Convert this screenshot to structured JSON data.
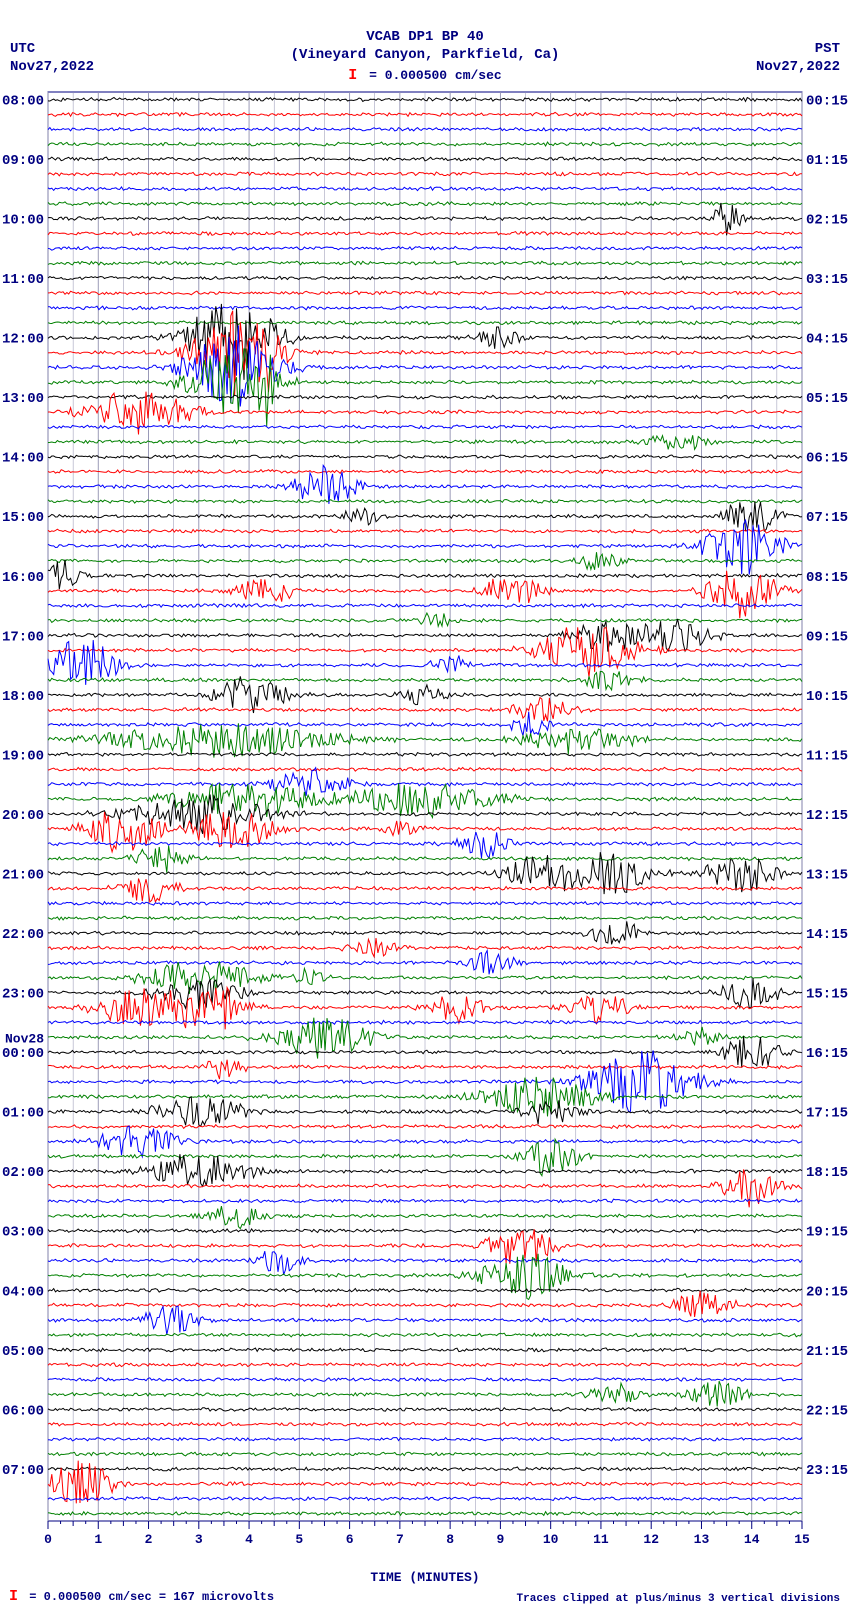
{
  "header": {
    "station": "VCAB DP1 BP 40",
    "location": "(Vineyard Canyon, Parkfield, Ca)",
    "scale_value": "= 0.000500 cm/sec"
  },
  "corners": {
    "tl_tz": "UTC",
    "tl_date": "Nov27,2022",
    "tr_tz": "PST",
    "tr_date": "Nov27,2022"
  },
  "footer": {
    "left": "= 0.000500 cm/sec =    167 microvolts",
    "right": "Traces clipped at plus/minus 3 vertical divisions"
  },
  "x_axis": {
    "label": "TIME (MINUTES)",
    "ticks": [
      0,
      1,
      2,
      3,
      4,
      5,
      6,
      7,
      8,
      9,
      10,
      11,
      12,
      13,
      14,
      15
    ]
  },
  "plot": {
    "grid_color": "#9090b0",
    "axis_color": "#000080",
    "trace_colors": [
      "#000000",
      "#ff0000",
      "#0000ff",
      "#008000"
    ],
    "line_width": 1.0,
    "x_min": 0,
    "x_max": 15,
    "trace_count": 96,
    "date_break": {
      "after_hour": 23,
      "label": "Nov28"
    },
    "left_labels": [
      {
        "idx": 0,
        "t": "08:00"
      },
      {
        "idx": 4,
        "t": "09:00"
      },
      {
        "idx": 8,
        "t": "10:00"
      },
      {
        "idx": 12,
        "t": "11:00"
      },
      {
        "idx": 16,
        "t": "12:00"
      },
      {
        "idx": 20,
        "t": "13:00"
      },
      {
        "idx": 24,
        "t": "14:00"
      },
      {
        "idx": 28,
        "t": "15:00"
      },
      {
        "idx": 32,
        "t": "16:00"
      },
      {
        "idx": 36,
        "t": "17:00"
      },
      {
        "idx": 40,
        "t": "18:00"
      },
      {
        "idx": 44,
        "t": "19:00"
      },
      {
        "idx": 48,
        "t": "20:00"
      },
      {
        "idx": 52,
        "t": "21:00"
      },
      {
        "idx": 56,
        "t": "22:00"
      },
      {
        "idx": 60,
        "t": "23:00"
      },
      {
        "idx": 64,
        "t": "00:00"
      },
      {
        "idx": 68,
        "t": "01:00"
      },
      {
        "idx": 72,
        "t": "02:00"
      },
      {
        "idx": 76,
        "t": "03:00"
      },
      {
        "idx": 80,
        "t": "04:00"
      },
      {
        "idx": 84,
        "t": "05:00"
      },
      {
        "idx": 88,
        "t": "06:00"
      },
      {
        "idx": 92,
        "t": "07:00"
      }
    ],
    "right_labels": [
      {
        "idx": 0,
        "t": "00:15"
      },
      {
        "idx": 4,
        "t": "01:15"
      },
      {
        "idx": 8,
        "t": "02:15"
      },
      {
        "idx": 12,
        "t": "03:15"
      },
      {
        "idx": 16,
        "t": "04:15"
      },
      {
        "idx": 20,
        "t": "05:15"
      },
      {
        "idx": 24,
        "t": "06:15"
      },
      {
        "idx": 28,
        "t": "07:15"
      },
      {
        "idx": 32,
        "t": "08:15"
      },
      {
        "idx": 36,
        "t": "09:15"
      },
      {
        "idx": 40,
        "t": "10:15"
      },
      {
        "idx": 44,
        "t": "11:15"
      },
      {
        "idx": 48,
        "t": "12:15"
      },
      {
        "idx": 52,
        "t": "13:15"
      },
      {
        "idx": 56,
        "t": "14:15"
      },
      {
        "idx": 60,
        "t": "15:15"
      },
      {
        "idx": 64,
        "t": "16:15"
      },
      {
        "idx": 68,
        "t": "17:15"
      },
      {
        "idx": 72,
        "t": "18:15"
      },
      {
        "idx": 76,
        "t": "19:15"
      },
      {
        "idx": 80,
        "t": "20:15"
      },
      {
        "idx": 84,
        "t": "21:15"
      },
      {
        "idx": 88,
        "t": "22:15"
      },
      {
        "idx": 92,
        "t": "23:15"
      }
    ],
    "events": [
      {
        "idx": 8,
        "x": 13.5,
        "w": 0.4,
        "a": 1.3
      },
      {
        "idx": 16,
        "x": 3.7,
        "w": 1.2,
        "a": 3.0
      },
      {
        "idx": 16,
        "x": 9.0,
        "w": 0.6,
        "a": 0.9
      },
      {
        "idx": 17,
        "x": 3.7,
        "w": 1.2,
        "a": 3.0
      },
      {
        "idx": 17,
        "x": 4.4,
        "w": 0.3,
        "a": 3.0
      },
      {
        "idx": 18,
        "x": 3.7,
        "w": 1.2,
        "a": 3.0
      },
      {
        "idx": 19,
        "x": 3.7,
        "w": 1.2,
        "a": 2.5
      },
      {
        "idx": 19,
        "x": 4.4,
        "w": 0.2,
        "a": 2.5
      },
      {
        "idx": 21,
        "x": 1.8,
        "w": 1.5,
        "a": 1.5
      },
      {
        "idx": 23,
        "x": 12.5,
        "w": 1.0,
        "a": 0.6
      },
      {
        "idx": 26,
        "x": 5.5,
        "w": 0.8,
        "a": 1.6
      },
      {
        "idx": 28,
        "x": 6.2,
        "w": 0.5,
        "a": 0.7
      },
      {
        "idx": 28,
        "x": 14.0,
        "w": 0.8,
        "a": 1.3
      },
      {
        "idx": 30,
        "x": 13.8,
        "w": 1.0,
        "a": 2.0
      },
      {
        "idx": 31,
        "x": 11.0,
        "w": 0.7,
        "a": 0.8
      },
      {
        "idx": 32,
        "x": 0.3,
        "w": 0.5,
        "a": 1.1
      },
      {
        "idx": 33,
        "x": 4.3,
        "w": 0.8,
        "a": 1.0
      },
      {
        "idx": 33,
        "x": 9.2,
        "w": 0.8,
        "a": 1.3
      },
      {
        "idx": 33,
        "x": 13.8,
        "w": 1.0,
        "a": 1.8
      },
      {
        "idx": 35,
        "x": 7.7,
        "w": 0.5,
        "a": 0.6
      },
      {
        "idx": 36,
        "x": 11.2,
        "w": 1.0,
        "a": 1.2
      },
      {
        "idx": 36,
        "x": 12.5,
        "w": 1.0,
        "a": 1.2
      },
      {
        "idx": 37,
        "x": 10.7,
        "w": 1.3,
        "a": 1.8
      },
      {
        "idx": 38,
        "x": 0.7,
        "w": 1.0,
        "a": 1.8
      },
      {
        "idx": 38,
        "x": 8.0,
        "w": 0.5,
        "a": 0.7
      },
      {
        "idx": 39,
        "x": 11.2,
        "w": 0.8,
        "a": 0.8
      },
      {
        "idx": 40,
        "x": 4.0,
        "w": 1.0,
        "a": 1.3
      },
      {
        "idx": 40,
        "x": 7.5,
        "w": 0.6,
        "a": 0.8
      },
      {
        "idx": 41,
        "x": 9.8,
        "w": 0.8,
        "a": 1.0
      },
      {
        "idx": 42,
        "x": 9.6,
        "w": 0.5,
        "a": 0.9
      },
      {
        "idx": 43,
        "x": 3.5,
        "w": 3.0,
        "a": 1.2
      },
      {
        "idx": 43,
        "x": 10.5,
        "w": 1.5,
        "a": 1.0
      },
      {
        "idx": 46,
        "x": 5.2,
        "w": 1.0,
        "a": 1.1
      },
      {
        "idx": 47,
        "x": 4.0,
        "w": 2.0,
        "a": 1.3
      },
      {
        "idx": 47,
        "x": 7.5,
        "w": 2.0,
        "a": 1.3
      },
      {
        "idx": 48,
        "x": 3.0,
        "w": 2.0,
        "a": 1.3
      },
      {
        "idx": 49,
        "x": 1.5,
        "w": 1.0,
        "a": 1.6
      },
      {
        "idx": 49,
        "x": 3.7,
        "w": 1.2,
        "a": 1.4
      },
      {
        "idx": 49,
        "x": 7.0,
        "w": 0.5,
        "a": 0.6
      },
      {
        "idx": 50,
        "x": 8.7,
        "w": 0.7,
        "a": 1.0
      },
      {
        "idx": 51,
        "x": 2.3,
        "w": 0.8,
        "a": 1.0
      },
      {
        "idx": 52,
        "x": 9.8,
        "w": 1.0,
        "a": 1.3
      },
      {
        "idx": 52,
        "x": 11.2,
        "w": 1.2,
        "a": 1.5
      },
      {
        "idx": 52,
        "x": 13.8,
        "w": 1.0,
        "a": 1.3
      },
      {
        "idx": 53,
        "x": 2.0,
        "w": 0.8,
        "a": 1.0
      },
      {
        "idx": 56,
        "x": 11.3,
        "w": 0.7,
        "a": 0.9
      },
      {
        "idx": 57,
        "x": 6.5,
        "w": 0.7,
        "a": 0.7
      },
      {
        "idx": 58,
        "x": 8.8,
        "w": 0.7,
        "a": 0.8
      },
      {
        "idx": 59,
        "x": 3.0,
        "w": 1.5,
        "a": 1.3
      },
      {
        "idx": 59,
        "x": 5.2,
        "w": 0.4,
        "a": 0.7
      },
      {
        "idx": 60,
        "x": 3.0,
        "w": 1.2,
        "a": 1.2
      },
      {
        "idx": 60,
        "x": 14.0,
        "w": 0.8,
        "a": 1.1
      },
      {
        "idx": 61,
        "x": 2.3,
        "w": 1.8,
        "a": 1.6
      },
      {
        "idx": 61,
        "x": 3.5,
        "w": 0.2,
        "a": 2.2
      },
      {
        "idx": 61,
        "x": 8.2,
        "w": 0.8,
        "a": 1.0
      },
      {
        "idx": 61,
        "x": 11.0,
        "w": 0.8,
        "a": 1.1
      },
      {
        "idx": 63,
        "x": 5.5,
        "w": 1.3,
        "a": 1.5
      },
      {
        "idx": 63,
        "x": 13.0,
        "w": 0.6,
        "a": 0.8
      },
      {
        "idx": 64,
        "x": 14.0,
        "w": 0.8,
        "a": 1.2
      },
      {
        "idx": 65,
        "x": 3.5,
        "w": 0.5,
        "a": 0.9
      },
      {
        "idx": 66,
        "x": 11.8,
        "w": 1.5,
        "a": 2.2
      },
      {
        "idx": 67,
        "x": 9.8,
        "w": 1.5,
        "a": 1.4
      },
      {
        "idx": 68,
        "x": 3.0,
        "w": 1.2,
        "a": 1.3
      },
      {
        "idx": 68,
        "x": 10.0,
        "w": 0.8,
        "a": 0.9
      },
      {
        "idx": 70,
        "x": 1.8,
        "w": 1.0,
        "a": 1.3
      },
      {
        "idx": 71,
        "x": 10.0,
        "w": 0.8,
        "a": 1.5
      },
      {
        "idx": 72,
        "x": 3.0,
        "w": 1.3,
        "a": 1.5
      },
      {
        "idx": 73,
        "x": 14.0,
        "w": 0.8,
        "a": 1.4
      },
      {
        "idx": 75,
        "x": 3.7,
        "w": 0.8,
        "a": 1.0
      },
      {
        "idx": 77,
        "x": 9.4,
        "w": 0.9,
        "a": 1.5
      },
      {
        "idx": 78,
        "x": 4.6,
        "w": 0.7,
        "a": 1.0
      },
      {
        "idx": 79,
        "x": 9.5,
        "w": 1.2,
        "a": 1.6
      },
      {
        "idx": 81,
        "x": 13.0,
        "w": 0.8,
        "a": 1.0
      },
      {
        "idx": 82,
        "x": 2.4,
        "w": 0.7,
        "a": 1.1
      },
      {
        "idx": 87,
        "x": 11.3,
        "w": 0.7,
        "a": 0.8
      },
      {
        "idx": 87,
        "x": 13.3,
        "w": 0.8,
        "a": 1.0
      },
      {
        "idx": 93,
        "x": 0.6,
        "w": 1.0,
        "a": 1.6
      }
    ]
  }
}
